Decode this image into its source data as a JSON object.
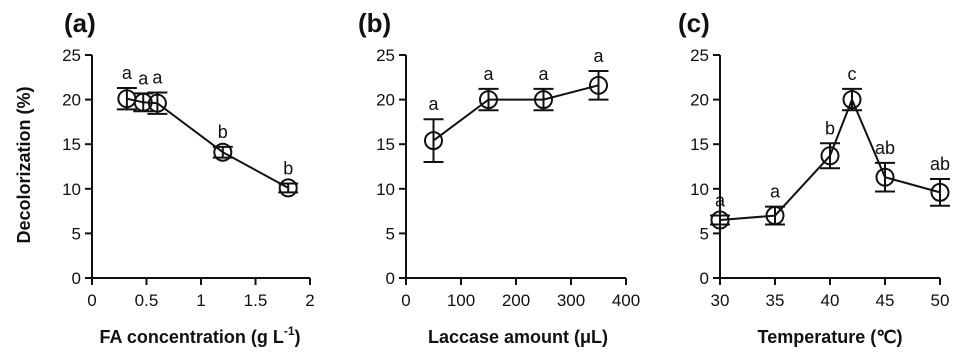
{
  "ylabel": "Decolorization (%)",
  "chart_data": [
    {
      "type": "line",
      "panel_label": "(a)",
      "xlabel": "FA concentration (g L",
      "xlabel_superscript": "-1",
      "xlabel_suffix": ")",
      "xlim": [
        0,
        2
      ],
      "xticks": [
        0,
        0.5,
        1,
        1.5,
        2
      ],
      "xtick_labels": [
        "0",
        "0.5",
        "1",
        "1.5",
        "2"
      ],
      "ylim": [
        0,
        25
      ],
      "yticks": [
        0,
        5,
        10,
        15,
        20,
        25
      ],
      "series": [
        {
          "x": [
            0.32,
            0.47,
            0.6,
            1.2,
            1.8
          ],
          "y": [
            20.1,
            19.7,
            19.6,
            14.1,
            10.1
          ],
          "err": [
            1.2,
            1.0,
            1.2,
            0.6,
            0.5
          ],
          "letters": [
            "a",
            "a",
            "a",
            "b",
            "b"
          ]
        }
      ]
    },
    {
      "type": "line",
      "panel_label": "(b)",
      "xlabel": "Laccase amount (μL)",
      "xlim": [
        0,
        400
      ],
      "xticks": [
        0,
        100,
        200,
        300,
        400
      ],
      "xtick_labels": [
        "0",
        "100",
        "200",
        "300",
        "400"
      ],
      "ylim": [
        0,
        25
      ],
      "yticks": [
        0,
        5,
        10,
        15,
        20,
        25
      ],
      "series": [
        {
          "x": [
            50,
            150,
            250,
            350
          ],
          "y": [
            15.4,
            20.0,
            20.0,
            21.6
          ],
          "err": [
            2.4,
            1.2,
            1.2,
            1.6
          ],
          "letters": [
            "a",
            "a",
            "a",
            "a"
          ]
        }
      ]
    },
    {
      "type": "line",
      "panel_label": "(c)",
      "xlabel": "Temperature (℃)",
      "xlim": [
        30,
        50
      ],
      "xticks": [
        30,
        35,
        40,
        45,
        50
      ],
      "xtick_labels": [
        "30",
        "35",
        "40",
        "45",
        "50"
      ],
      "ylim": [
        0,
        25
      ],
      "yticks": [
        0,
        5,
        10,
        15,
        20,
        25
      ],
      "series": [
        {
          "x": [
            30,
            35,
            40,
            42,
            45,
            50
          ],
          "y": [
            6.5,
            7.0,
            13.7,
            20.0,
            11.3,
            9.6
          ],
          "err": [
            0.5,
            1.0,
            1.4,
            1.2,
            1.6,
            1.5
          ],
          "letters": [
            "a",
            "a",
            "b",
            "c",
            "ab",
            "ab"
          ]
        }
      ]
    }
  ]
}
